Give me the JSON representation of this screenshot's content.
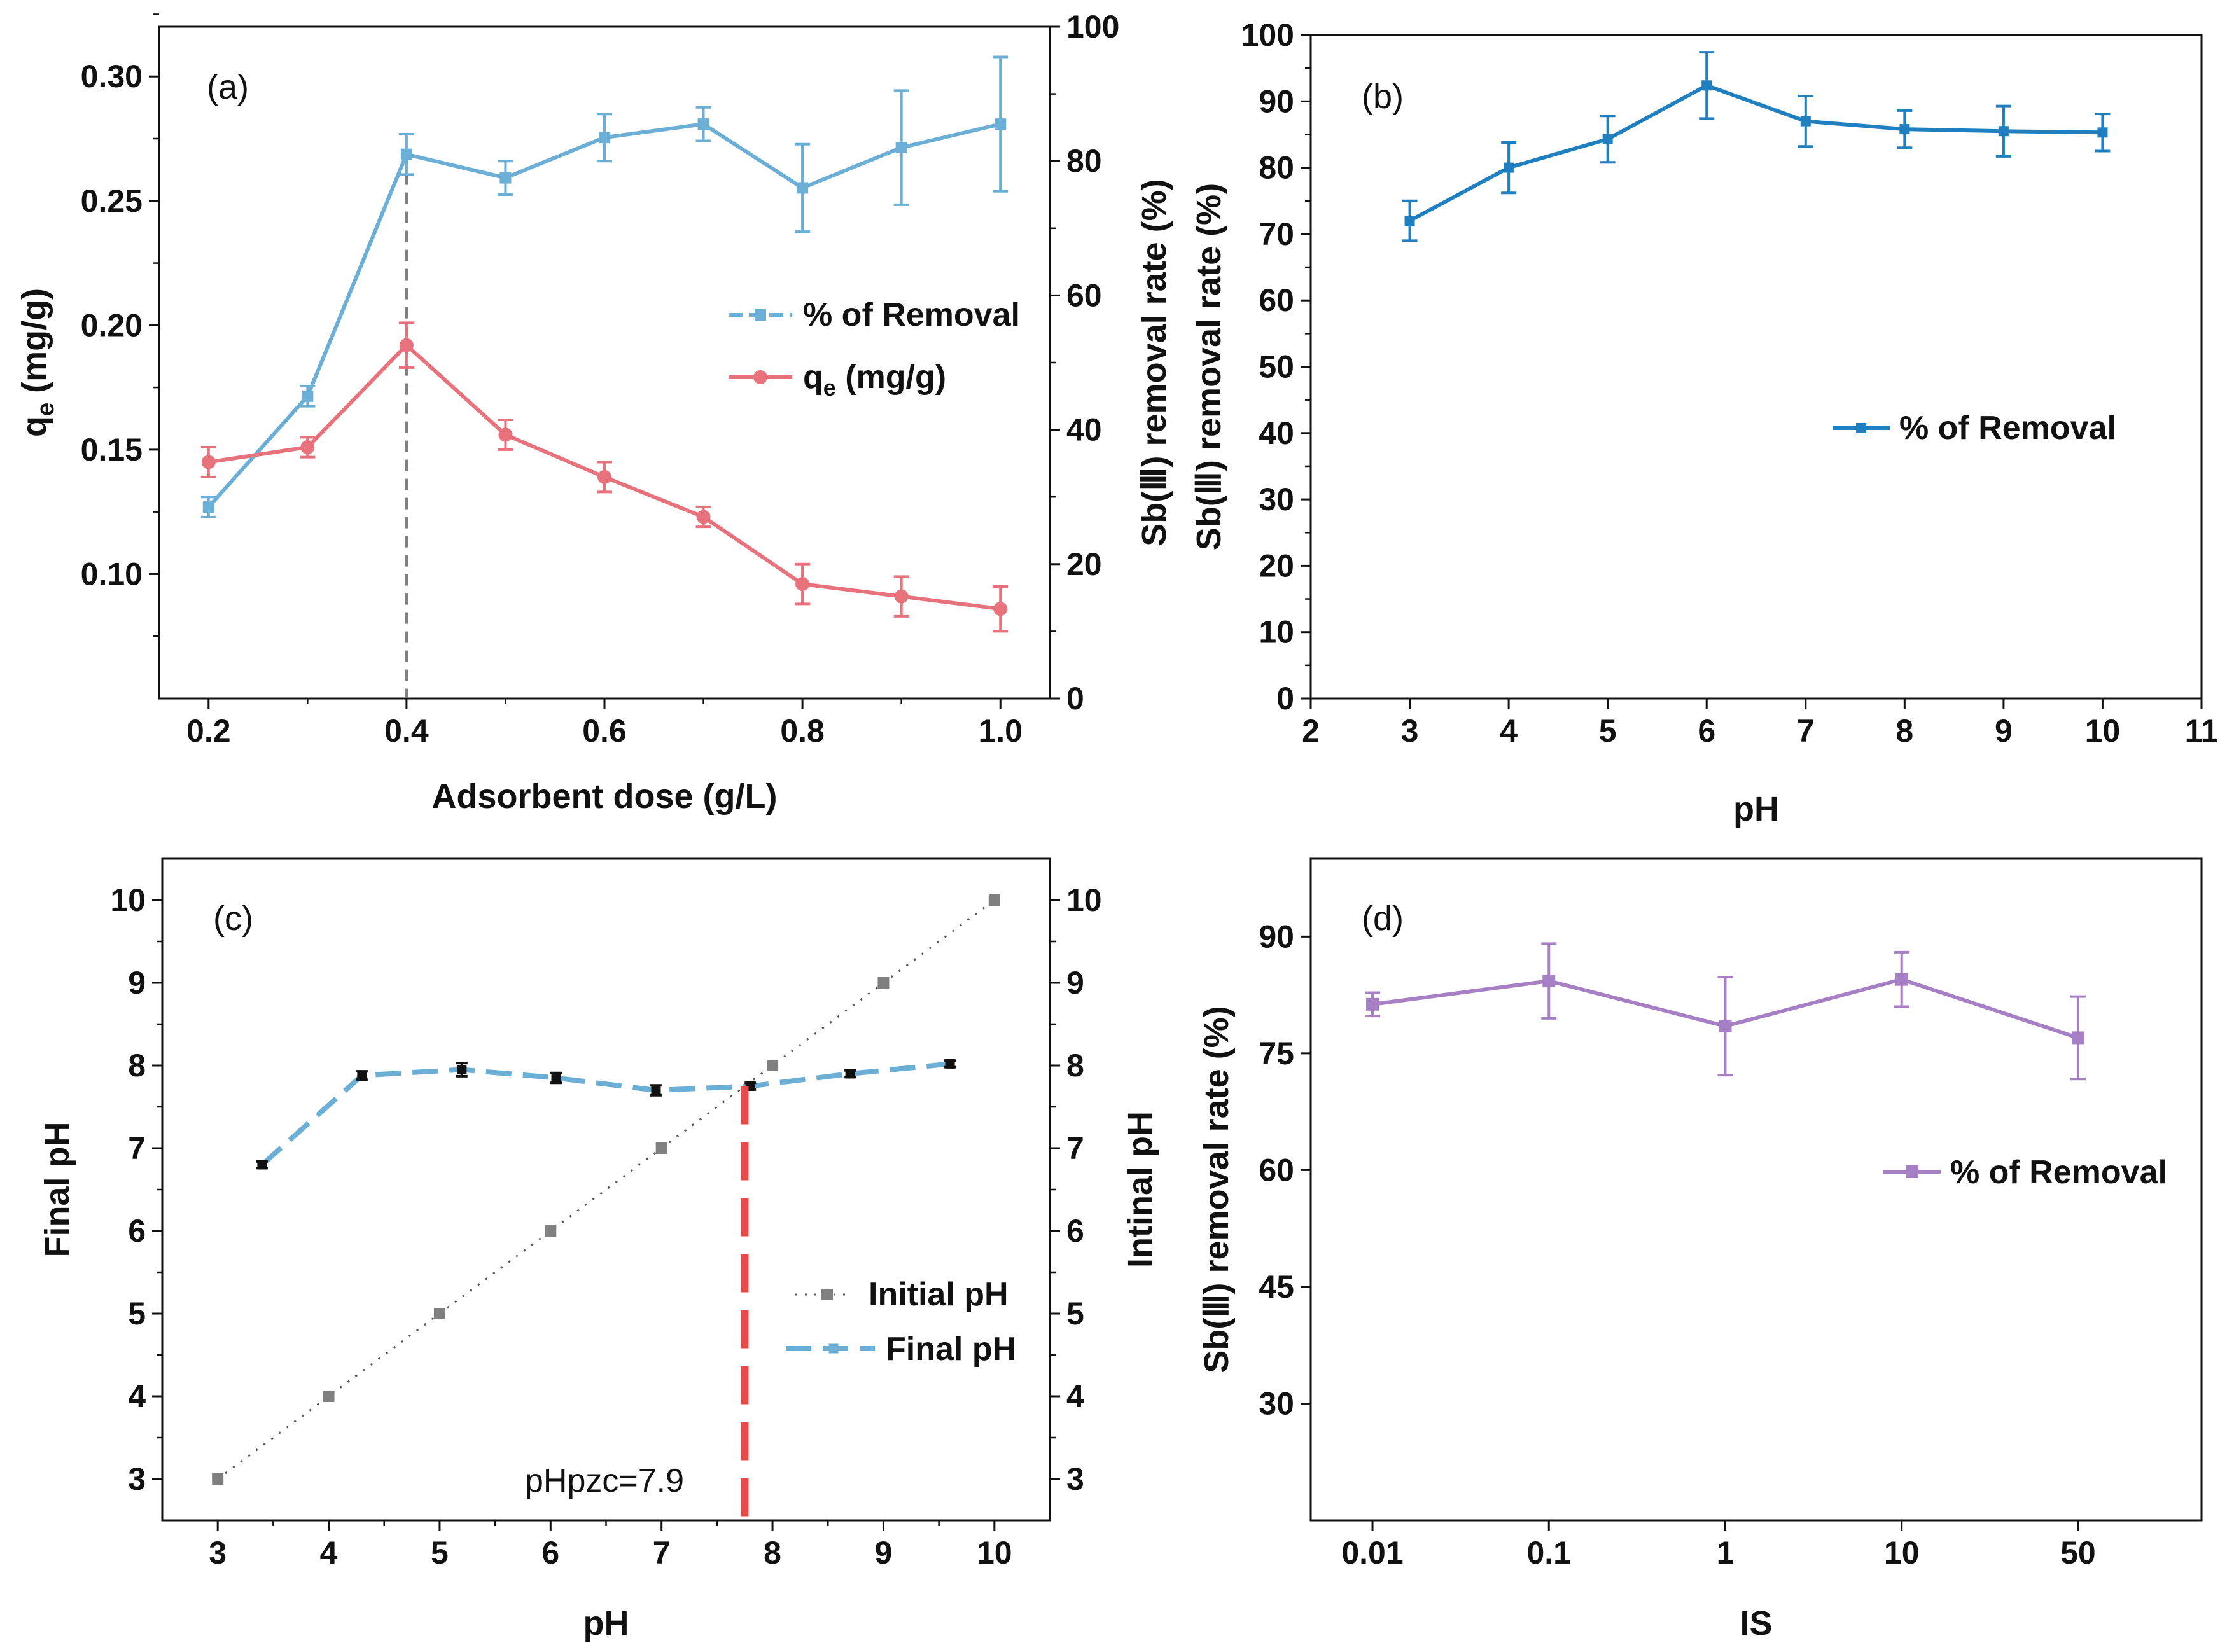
{
  "chart_data": [
    {
      "id": "a",
      "type": "line",
      "panel_label": "(a)",
      "xlabel": "Adsorbent dose (g/L)",
      "ylabel_left_main": "q",
      "ylabel_left_sub": "e",
      "ylabel_left_unit": " (mg/g)",
      "ylabel_right": "Sb(Ⅲ) removal rate (%)",
      "xlim": [
        0.15,
        1.05
      ],
      "ylim_left": [
        0.05,
        0.32
      ],
      "ylim_right": [
        0,
        100
      ],
      "xticks": [
        0.2,
        0.4,
        0.6,
        0.8,
        1.0
      ],
      "xtick_labels": [
        "0.2",
        "0.4",
        "0.6",
        "0.8",
        "1.0"
      ],
      "yticks_left": [
        0.1,
        0.15,
        0.2,
        0.25,
        0.3
      ],
      "ytick_labels_left": [
        "0.10",
        "0.15",
        "0.20",
        "0.25",
        "0.30"
      ],
      "yticks_right": [
        0,
        20,
        40,
        60,
        80,
        100
      ],
      "ytick_labels_right": [
        "0",
        "20",
        "40",
        "60",
        "80",
        "100"
      ],
      "x": [
        0.2,
        0.3,
        0.4,
        0.5,
        0.6,
        0.7,
        0.8,
        0.9,
        1.0
      ],
      "series": [
        {
          "name": "% of Removal",
          "axis": "right",
          "color": "#6baed6",
          "marker": "square",
          "values": [
            28.5,
            45,
            81,
            77.5,
            83.5,
            85.5,
            76,
            82,
            85.5
          ],
          "errors": [
            1.5,
            1.5,
            3,
            2.5,
            3.5,
            2.5,
            6.5,
            8.5,
            10
          ]
        },
        {
          "name_main": "q",
          "name_sub": "e",
          "name_unit": " (mg/g)",
          "axis": "left",
          "color": "#e8727c",
          "marker": "circle",
          "values": [
            0.145,
            0.151,
            0.192,
            0.156,
            0.139,
            0.123,
            0.096,
            0.091,
            0.086
          ],
          "errors": [
            0.006,
            0.004,
            0.009,
            0.006,
            0.006,
            0.004,
            0.008,
            0.008,
            0.009
          ]
        }
      ],
      "annotations": {
        "vline_x": 0.4,
        "vline_color": "#808080"
      }
    },
    {
      "id": "b",
      "type": "line",
      "panel_label": "(b)",
      "xlabel": "pH",
      "ylabel_left": "Sb(Ⅲ) removal rate (%)",
      "xlim": [
        2,
        11
      ],
      "ylim": [
        0,
        100
      ],
      "xticks": [
        2,
        3,
        4,
        5,
        6,
        7,
        8,
        9,
        10,
        11
      ],
      "xtick_labels": [
        "2",
        "3",
        "4",
        "5",
        "6",
        "7",
        "8",
        "9",
        "10",
        "11"
      ],
      "yticks": [
        0,
        10,
        20,
        30,
        40,
        50,
        60,
        70,
        80,
        90,
        100
      ],
      "ytick_labels": [
        "0",
        "10",
        "20",
        "30",
        "40",
        "50",
        "60",
        "70",
        "80",
        "90",
        "100"
      ],
      "x": [
        3,
        4,
        5,
        6,
        7,
        8,
        9,
        10
      ],
      "series": [
        {
          "name": "% of Removal",
          "color": "#1f7fbf",
          "marker": "square",
          "values": [
            72,
            80,
            84.3,
            92.4,
            87,
            85.8,
            85.5,
            85.3
          ],
          "errors": [
            3,
            3.8,
            3.5,
            5,
            3.8,
            2.8,
            3.8,
            2.8
          ]
        }
      ]
    },
    {
      "id": "c",
      "type": "line",
      "panel_label": "(c)",
      "xlabel": "pH",
      "ylabel_left": "Final pH",
      "ylabel_right": "Intinal pH",
      "xlim": [
        2.5,
        10.5
      ],
      "ylim": [
        2.5,
        10.5
      ],
      "xticks": [
        3,
        4,
        5,
        6,
        7,
        8,
        9,
        10
      ],
      "xtick_labels": [
        "3",
        "4",
        "5",
        "6",
        "7",
        "8",
        "9",
        "10"
      ],
      "yticks": [
        3,
        4,
        5,
        6,
        7,
        8,
        9,
        10
      ],
      "ytick_labels": [
        "3",
        "4",
        "5",
        "6",
        "7",
        "8",
        "9",
        "10"
      ],
      "series": [
        {
          "name": "Initial pH",
          "color": "#808080",
          "marker": "square",
          "style": "dotted",
          "x": [
            3,
            4,
            5,
            6,
            7,
            8,
            9,
            10
          ],
          "values": [
            3,
            4,
            5,
            6,
            7,
            8,
            9,
            10
          ]
        },
        {
          "name": "Final pH",
          "color": "#6baed6",
          "marker": "square",
          "marker_color": "#111111",
          "style": "dashed",
          "x": [
            3.4,
            4.3,
            5.2,
            6.05,
            6.95,
            7.8,
            8.7,
            9.6
          ],
          "values": [
            6.8,
            7.88,
            7.95,
            7.85,
            7.7,
            7.75,
            7.9,
            8.02
          ],
          "errors": [
            0.04,
            0.05,
            0.08,
            0.06,
            0.06,
            0.04,
            0.04,
            0.04
          ]
        }
      ],
      "annotations": {
        "pHpzc_text": "pHpzc=7.9",
        "vline_x": 7.75,
        "vline_color": "#e84a4a"
      }
    },
    {
      "id": "d",
      "type": "line",
      "panel_label": "(d)",
      "xlabel": "IS",
      "ylabel_left": "Sb(Ⅲ) removal rate (%)",
      "xlim": [
        -0.35,
        4.7
      ],
      "ylim": [
        15,
        100
      ],
      "categories": [
        "0.01",
        "0.1",
        "1",
        "10",
        "50"
      ],
      "yticks": [
        30,
        45,
        60,
        75,
        90
      ],
      "ytick_labels": [
        "30",
        "45",
        "60",
        "75",
        "90"
      ],
      "series": [
        {
          "name": "% of Removal",
          "color": "#a77fc4",
          "marker": "square",
          "values": [
            81.3,
            84.3,
            78.5,
            84.5,
            77
          ],
          "errors": [
            1.5,
            4.8,
            6.3,
            3.5,
            5.3
          ]
        }
      ]
    }
  ]
}
